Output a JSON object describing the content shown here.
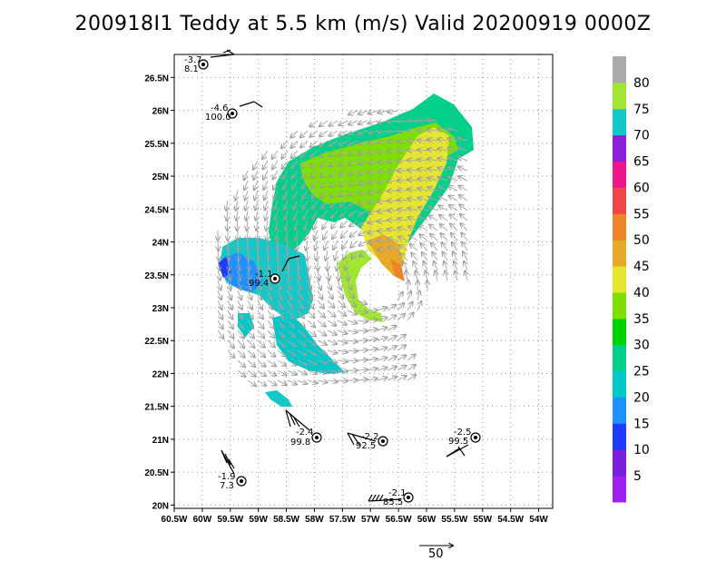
{
  "title": "200918I1 Teddy at 5.5 km (m/s) Valid 20200919 0000Z",
  "map": {
    "lon_range": [
      -60.5,
      -53.75
    ],
    "lat_range": [
      19.95,
      26.85
    ],
    "x_ticks": [
      "60.5W",
      "60W",
      "59.5W",
      "59W",
      "58.5W",
      "58W",
      "57.5W",
      "57W",
      "56.5W",
      "56W",
      "55.5W",
      "55W",
      "54.5W",
      "54W"
    ],
    "y_ticks": [
      "20N",
      "20.5N",
      "21N",
      "21.5N",
      "22N",
      "22.5N",
      "23N",
      "23.5N",
      "24N",
      "24.5N",
      "25N",
      "25.5N",
      "26N",
      "26.5N"
    ],
    "grid": true
  },
  "colorbar": {
    "labels": [
      "5",
      "10",
      "15",
      "20",
      "25",
      "30",
      "35",
      "40",
      "45",
      "50",
      "55",
      "60",
      "65",
      "70",
      "75",
      "80"
    ],
    "colors": [
      "#a020f0",
      "#7a1ee0",
      "#1e3cff",
      "#1e90ff",
      "#00c8c8",
      "#00d08a",
      "#00d400",
      "#7ee000",
      "#e6e632",
      "#e6aa28",
      "#f08228",
      "#f04646",
      "#f0148c",
      "#8c1edc",
      "#14c8c8",
      "#a0e632",
      "#aaaaaa"
    ]
  },
  "observations": [
    {
      "top": "-3.7",
      "bottom": "8.1"
    },
    {
      "top": "-4.6",
      "bottom": "100.0"
    },
    {
      "top": "-1.1",
      "bottom": "99.4"
    },
    {
      "top": "-2.4",
      "bottom": "99.8"
    },
    {
      "top": "-2.2",
      "bottom": "92.5"
    },
    {
      "top": "-2.5",
      "bottom": "99.5"
    },
    {
      "top": "-1.9",
      "bottom": "7.3"
    },
    {
      "top": "-2.1",
      "bottom": "85.5"
    }
  ],
  "reference_vector": {
    "label": "50"
  }
}
